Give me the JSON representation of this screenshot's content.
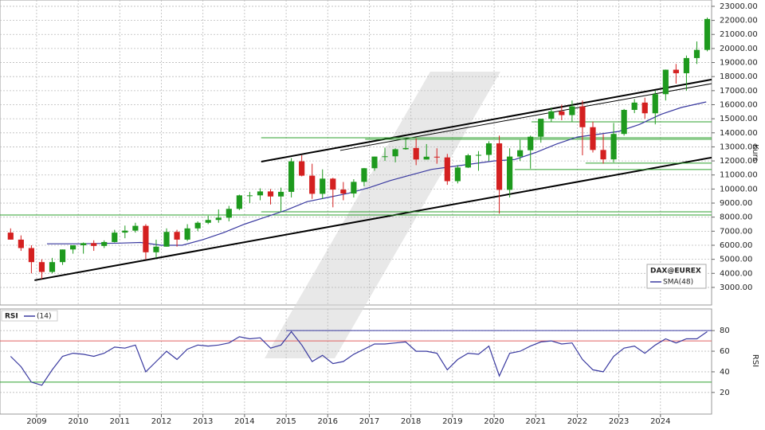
{
  "chart_data": [
    {
      "type": "candlestick",
      "name": "DAX@EUREX",
      "y_label": "Kurs",
      "up_color": "#1e9a1e",
      "down_color": "#d42020",
      "xlim": [
        2008.12,
        2025.23
      ],
      "ylim": [
        1750,
        23450
      ],
      "yticks": [
        {
          "value": 3000,
          "label": "3000.00"
        },
        {
          "value": 4000,
          "label": "4000.00"
        },
        {
          "value": 5000,
          "label": "5000.00"
        },
        {
          "value": 6000,
          "label": "6000.00"
        },
        {
          "value": 7000,
          "label": "7000.00"
        },
        {
          "value": 8000,
          "label": "8000.00"
        },
        {
          "value": 9000,
          "label": "9000.00"
        },
        {
          "value": 10000,
          "label": "10000.00"
        },
        {
          "value": 11000,
          "label": "11000.00"
        },
        {
          "value": 12000,
          "label": "12000.00"
        },
        {
          "value": 13000,
          "label": "13000.00"
        },
        {
          "value": 14000,
          "label": "14000.00"
        },
        {
          "value": 15000,
          "label": "15000.00"
        },
        {
          "value": 16000,
          "label": "16000.00"
        },
        {
          "value": 17000,
          "label": "17000.00"
        },
        {
          "value": 18000,
          "label": "18000.00"
        },
        {
          "value": 19000,
          "label": "19000.00"
        },
        {
          "value": 20000,
          "label": "20000.00"
        },
        {
          "value": 21000,
          "label": "21000.00"
        },
        {
          "value": 22000,
          "label": "22000.00"
        },
        {
          "value": 23000,
          "label": "23000.00"
        }
      ],
      "grid": true,
      "x": [
        2008.375,
        2008.625,
        2008.875,
        2009.125,
        2009.375,
        2009.625,
        2009.875,
        2010.125,
        2010.375,
        2010.625,
        2010.875,
        2011.125,
        2011.375,
        2011.625,
        2011.875,
        2012.125,
        2012.375,
        2012.625,
        2012.875,
        2013.125,
        2013.375,
        2013.625,
        2013.875,
        2014.125,
        2014.375,
        2014.625,
        2014.875,
        2015.125,
        2015.375,
        2015.625,
        2015.875,
        2016.125,
        2016.375,
        2016.625,
        2016.875,
        2017.125,
        2017.375,
        2017.625,
        2017.875,
        2018.125,
        2018.375,
        2018.625,
        2018.875,
        2019.125,
        2019.375,
        2019.625,
        2019.875,
        2020.125,
        2020.375,
        2020.625,
        2020.875,
        2021.125,
        2021.375,
        2021.625,
        2021.875,
        2022.125,
        2022.375,
        2022.625,
        2022.875,
        2023.125,
        2023.375,
        2023.625,
        2023.875,
        2024.125,
        2024.375,
        2024.625,
        2024.875,
        2025.125
      ],
      "open": [
        6900,
        6400,
        5800,
        4800,
        4100,
        4800,
        5700,
        6000,
        6150,
        5950,
        6230,
        6900,
        7040,
        7380,
        5500,
        5900,
        6950,
        6400,
        7200,
        7600,
        7800,
        7960,
        8590,
        9550,
        9550,
        9830,
        9470,
        9800,
        11970,
        10950,
        9660,
        10740,
        9960,
        9680,
        10510,
        11480,
        12310,
        12330,
        12830,
        12920,
        12100,
        12300,
        12250,
        10560,
        11530,
        12400,
        12430,
        13250,
        9940,
        12310,
        12760,
        13720,
        15000,
        15530,
        15260,
        15880,
        14400,
        12780,
        12110,
        13920,
        15630,
        16150,
        15390,
        16750,
        18490,
        18240,
        19320,
        19900
      ],
      "high": [
        7200,
        6700,
        6000,
        5000,
        5100,
        5700,
        6000,
        6200,
        6350,
        6350,
        7100,
        7400,
        7600,
        7500,
        6400,
        7200,
        7100,
        7500,
        7700,
        8100,
        8550,
        8800,
        9600,
        9800,
        10050,
        10000,
        10100,
        12200,
        12400,
        11800,
        11400,
        10800,
        10500,
        10700,
        11500,
        12300,
        12950,
        12900,
        13550,
        13600,
        13200,
        12900,
        12500,
        11700,
        12500,
        12700,
        13400,
        13800,
        12900,
        13500,
        13800,
        15000,
        15800,
        16000,
        16300,
        16300,
        14800,
        13900,
        14700,
        15700,
        16400,
        16500,
        17000,
        18500,
        18900,
        19500,
        20500,
        22200
      ],
      "low": [
        6400,
        5600,
        4000,
        3600,
        4000,
        4600,
        5400,
        5400,
        5600,
        5800,
        6200,
        6500,
        6900,
        5000,
        5100,
        5900,
        5900,
        6300,
        7000,
        7500,
        7600,
        7700,
        8500,
        9000,
        9200,
        8900,
        8350,
        9400,
        10900,
        9300,
        9300,
        8700,
        9200,
        9400,
        10200,
        11300,
        12000,
        11900,
        12800,
        11700,
        12100,
        11800,
        10300,
        10400,
        11500,
        11300,
        12000,
        8250,
        9400,
        12000,
        11450,
        13300,
        14800,
        14900,
        14800,
        12400,
        12600,
        11800,
        11900,
        13800,
        15400,
        15000,
        14600,
        16300,
        17500,
        17000,
        18900,
        19800
      ],
      "close": [
        6400,
        5800,
        4800,
        4100,
        4800,
        5700,
        6000,
        6150,
        5950,
        6230,
        6900,
        7040,
        7380,
        5500,
        5900,
        6950,
        6400,
        7200,
        7600,
        7800,
        7960,
        8590,
        9550,
        9550,
        9830,
        9470,
        9800,
        11970,
        10950,
        9660,
        10740,
        9960,
        9680,
        10510,
        11480,
        12310,
        12330,
        12830,
        12920,
        12100,
        12300,
        12250,
        10560,
        11530,
        12400,
        12430,
        13250,
        9940,
        12310,
        12760,
        13720,
        15000,
        15530,
        15260,
        15880,
        14400,
        12780,
        12110,
        13920,
        15630,
        16150,
        15390,
        16750,
        18490,
        18240,
        19320,
        19900,
        22100
      ],
      "sma": {
        "name": "SMA(48)",
        "color": "#3a3aa0",
        "x": [
          2009.25,
          2010,
          2011,
          2011.5,
          2012,
          2012.5,
          2013,
          2013.5,
          2014,
          2014.5,
          2015,
          2015.5,
          2016,
          2016.5,
          2017,
          2017.5,
          2018,
          2018.5,
          2019,
          2019.5,
          2020,
          2020.5,
          2021,
          2021.5,
          2022,
          2022.5,
          2023,
          2023.5,
          2024,
          2024.5,
          2025.1
        ],
        "values": [
          6100,
          6100,
          6150,
          6200,
          6000,
          6000,
          6400,
          6900,
          7500,
          8000,
          8500,
          9100,
          9400,
          9700,
          10100,
          10600,
          11000,
          11400,
          11600,
          11800,
          12000,
          12100,
          12600,
          13200,
          13700,
          13900,
          14100,
          14600,
          15300,
          15800,
          16200
        ]
      },
      "lines": [
        {
          "x": [
            2008.95,
            2025.23
          ],
          "values": [
            3510,
            12240
          ],
          "color": "#000000",
          "weight": "thick"
        },
        {
          "x": [
            2014.4,
            2025.23
          ],
          "values": [
            11950,
            17790
          ],
          "color": "#000000",
          "weight": "thick"
        },
        {
          "x": [
            2016.3,
            2025.23
          ],
          "values": [
            12745,
            17500
          ],
          "color": "#000000",
          "weight": "thin"
        },
        {
          "x": [
            2008.12,
            2025.23
          ],
          "values": [
            8150,
            8150
          ],
          "color": "#2ea02e",
          "weight": "thin"
        },
        {
          "x": [
            2014.4,
            2025.23
          ],
          "values": [
            8380,
            8380
          ],
          "color": "#2ea02e",
          "weight": "thin"
        },
        {
          "x": [
            2014.4,
            2025.23
          ],
          "values": [
            13650,
            13650
          ],
          "color": "#2ea02e",
          "weight": "thin"
        },
        {
          "x": [
            2016.9,
            2025.23
          ],
          "values": [
            13540,
            13540
          ],
          "color": "#2ea02e",
          "weight": "thin"
        },
        {
          "x": [
            2020.9,
            2025.23
          ],
          "values": [
            14780,
            14780
          ],
          "color": "#2ea02e",
          "weight": "thin"
        },
        {
          "x": [
            2022.2,
            2025.23
          ],
          "values": [
            11840,
            11840
          ],
          "color": "#2ea02e",
          "weight": "thin"
        },
        {
          "x": [
            2020.5,
            2025.23
          ],
          "values": [
            11390,
            11390
          ],
          "color": "#2ea02e",
          "weight": "thin"
        }
      ]
    },
    {
      "type": "line",
      "title": "RSI",
      "y_label": "RSI",
      "xlim": [
        2008.12,
        2025.23
      ],
      "ylim": [
        -1,
        101
      ],
      "yticks": [
        20,
        40,
        60,
        80
      ],
      "xticks": [
        2009,
        2010,
        2011,
        2012,
        2013,
        2014,
        2015,
        2016,
        2017,
        2018,
        2019,
        2020,
        2021,
        2022,
        2023,
        2024
      ],
      "grid": true,
      "series": [
        {
          "name": "(14)",
          "color": "#3a3aa0",
          "x": [
            2008.375,
            2008.625,
            2008.875,
            2009.125,
            2009.375,
            2009.625,
            2009.875,
            2010.125,
            2010.375,
            2010.625,
            2010.875,
            2011.125,
            2011.375,
            2011.625,
            2011.875,
            2012.125,
            2012.375,
            2012.625,
            2012.875,
            2013.125,
            2013.375,
            2013.625,
            2013.875,
            2014.125,
            2014.375,
            2014.625,
            2014.875,
            2015.125,
            2015.375,
            2015.625,
            2015.875,
            2016.125,
            2016.375,
            2016.625,
            2016.875,
            2017.125,
            2017.375,
            2017.625,
            2017.875,
            2018.125,
            2018.375,
            2018.625,
            2018.875,
            2019.125,
            2019.375,
            2019.625,
            2019.875,
            2020.125,
            2020.375,
            2020.625,
            2020.875,
            2021.125,
            2021.375,
            2021.625,
            2021.875,
            2022.125,
            2022.375,
            2022.625,
            2022.875,
            2023.125,
            2023.375,
            2023.625,
            2023.875,
            2024.125,
            2024.375,
            2024.625,
            2024.875,
            2025.125
          ],
          "values": [
            55,
            45,
            30,
            27,
            42,
            55,
            58,
            57,
            55,
            58,
            64,
            63,
            66,
            40,
            50,
            60,
            52,
            62,
            66,
            65,
            66,
            68,
            74,
            72,
            73,
            63,
            66,
            79,
            66,
            50,
            56,
            48,
            50,
            57,
            62,
            67,
            67,
            68,
            69,
            60,
            60,
            58,
            42,
            52,
            58,
            57,
            65,
            36,
            58,
            60,
            65,
            69,
            70,
            67,
            68,
            52,
            42,
            40,
            55,
            63,
            65,
            58,
            66,
            72,
            68,
            72,
            72,
            79
          ]
        }
      ],
      "lines": [
        {
          "x": [
            2008.12,
            2025.23
          ],
          "values": [
            70,
            70
          ],
          "color": "#e06060",
          "weight": "thin"
        },
        {
          "x": [
            2008.12,
            2025.23
          ],
          "values": [
            30,
            30
          ],
          "color": "#2ea02e",
          "weight": "thin"
        },
        {
          "x": [
            2015.0,
            2025.23
          ],
          "values": [
            80,
            80
          ],
          "color": "#3a3aa0",
          "weight": "thin"
        }
      ]
    }
  ]
}
